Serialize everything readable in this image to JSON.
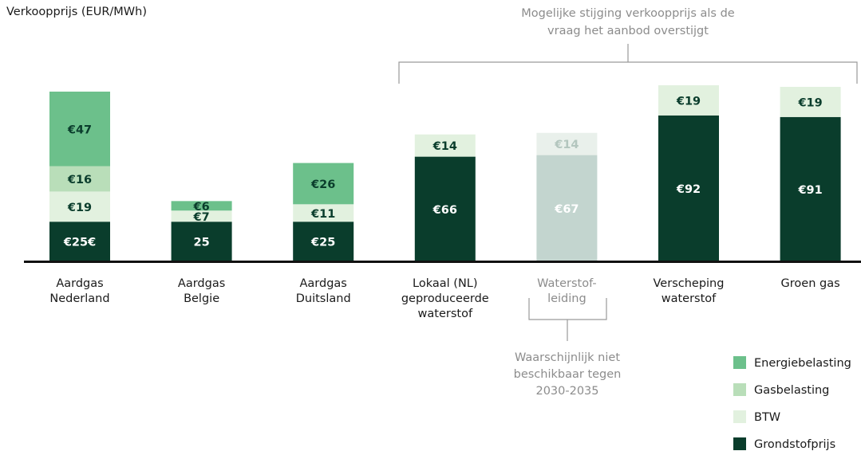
{
  "chart_data": {
    "type": "stacked_bar",
    "y_label": "Verkoopprijs  (EUR/MWh)",
    "annotations": {
      "top": "Mogelijke stijging verkoopprijs als de\nvraag het aanbod overstijgt",
      "bottom": "Waarschijnlijk niet\nbeschikbaar tegen\n2030-2035"
    },
    "categories": [
      "Aardgas\nNederland",
      "Aardgas\nBelgie",
      "Aardgas\nDuitsland",
      "Lokaal (NL)\ngeproduceerde\nwaterstof",
      "Waterstof-\nleiding",
      "Verscheping\nwaterstof",
      "Groen gas"
    ],
    "category_colors": [
      "#1a1a1a",
      "#1a1a1a",
      "#1a1a1a",
      "#1a1a1a",
      "#8c8c8c",
      "#1a1a1a",
      "#1a1a1a"
    ],
    "series": [
      {
        "name": "Grondstofprijs",
        "color": "#0a3d2c",
        "colors": [
          "#0a3d2c",
          "#0a3d2c",
          "#0a3d2c",
          "#0a3d2c",
          "#c3d5cf",
          "#0a3d2c",
          "#0a3d2c"
        ],
        "label_color": "#ffffff",
        "values": [
          25,
          25,
          25,
          66,
          67,
          92,
          91
        ],
        "value_labels": [
          "€25€",
          "25",
          "€25",
          "€66",
          "€67",
          "€92",
          "€91"
        ]
      },
      {
        "name": "BTW",
        "color": "#e2f1df",
        "colors": [
          "#e2f1df",
          "#e2f1df",
          "#e2f1df",
          "#e2f1df",
          "#e9f0eb",
          "#e2f1df",
          "#e2f1df"
        ],
        "label_color": [
          "#0a3d2c",
          "#0a3d2c",
          "#0a3d2c",
          "#0a3d2c",
          "#b3c6be",
          "#0a3d2c",
          "#0a3d2c"
        ],
        "values": [
          19,
          7,
          11,
          14,
          14,
          19,
          19
        ],
        "value_labels": [
          "€19",
          "€7",
          "€11",
          "€14",
          "€14",
          "€19",
          "€19"
        ]
      },
      {
        "name": "Gasbelasting",
        "color": "#b9deb9",
        "label_color": "#0a3d2c",
        "values": [
          16,
          null,
          null,
          null,
          null,
          null,
          null
        ],
        "value_labels": [
          "€16",
          null,
          null,
          null,
          null,
          null,
          null
        ]
      },
      {
        "name": "Energiebelasting",
        "color": "#6cc08b",
        "label_color": "#0a3d2c",
        "values": [
          47,
          6,
          26,
          null,
          null,
          null,
          null
        ],
        "value_labels": [
          "€47",
          "€6",
          "€26",
          null,
          null,
          null,
          null
        ]
      }
    ],
    "ylim": [
      0,
      110
    ],
    "legend": "bottom-right"
  }
}
